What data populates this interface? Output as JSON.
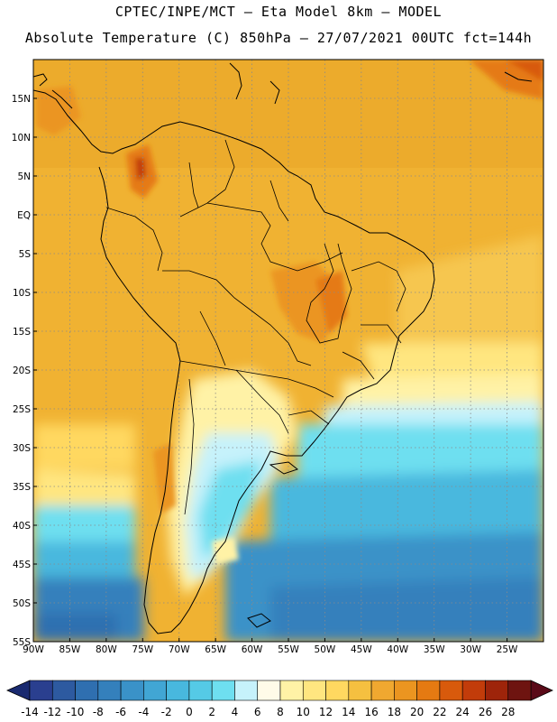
{
  "header": {
    "line1": "CPTEC/INPE/MCT –  Eta Model 8km – MODEL",
    "line2": "Absolute Temperature (C) 850hPa – 27/07/2021 00UTC fct=144h"
  },
  "map": {
    "lon_range": [
      -90,
      -20
    ],
    "lat_range": [
      -55,
      20
    ],
    "lat_ticks": [
      {
        "v": 15,
        "label": "15N"
      },
      {
        "v": 10,
        "label": "10N"
      },
      {
        "v": 5,
        "label": "5N"
      },
      {
        "v": 0,
        "label": "EQ"
      },
      {
        "v": -5,
        "label": "5S"
      },
      {
        "v": -10,
        "label": "10S"
      },
      {
        "v": -15,
        "label": "15S"
      },
      {
        "v": -20,
        "label": "20S"
      },
      {
        "v": -25,
        "label": "25S"
      },
      {
        "v": -30,
        "label": "30S"
      },
      {
        "v": -35,
        "label": "35S"
      },
      {
        "v": -40,
        "label": "40S"
      },
      {
        "v": -45,
        "label": "45S"
      },
      {
        "v": -50,
        "label": "50S"
      },
      {
        "v": -55,
        "label": "55S"
      }
    ],
    "lon_ticks": [
      {
        "v": -90,
        "label": "90W"
      },
      {
        "v": -85,
        "label": "85W"
      },
      {
        "v": -80,
        "label": "80W"
      },
      {
        "v": -75,
        "label": "75W"
      },
      {
        "v": -70,
        "label": "70W"
      },
      {
        "v": -65,
        "label": "65W"
      },
      {
        "v": -60,
        "label": "60W"
      },
      {
        "v": -55,
        "label": "55W"
      },
      {
        "v": -50,
        "label": "50W"
      },
      {
        "v": -45,
        "label": "45W"
      },
      {
        "v": -40,
        "label": "40W"
      },
      {
        "v": -35,
        "label": "35W"
      },
      {
        "v": -30,
        "label": "30W"
      },
      {
        "v": -25,
        "label": "25W"
      }
    ]
  },
  "colorbar": {
    "levels": [
      "-14",
      "-12",
      "-10",
      "-8",
      "-6",
      "-4",
      "-2",
      "0",
      "2",
      "4",
      "6",
      "8",
      "10",
      "12",
      "14",
      "16",
      "18",
      "20",
      "22",
      "24",
      "26",
      "28"
    ],
    "colors": [
      "#2a3f8f",
      "#2d5aa0",
      "#2f6fb0",
      "#3480bc",
      "#3a92c8",
      "#41a6d4",
      "#48b8de",
      "#55cae6",
      "#6edff0",
      "#c6f2fb",
      "#fffbe8",
      "#fff2a6",
      "#ffe680",
      "#ffd860",
      "#f5c040",
      "#f0a830",
      "#eb9520",
      "#e57a12",
      "#d85a0c",
      "#c23c0a",
      "#9e240a",
      "#6e1410"
    ],
    "end_low": "#1a2a70",
    "end_high": "#5a0a18"
  }
}
